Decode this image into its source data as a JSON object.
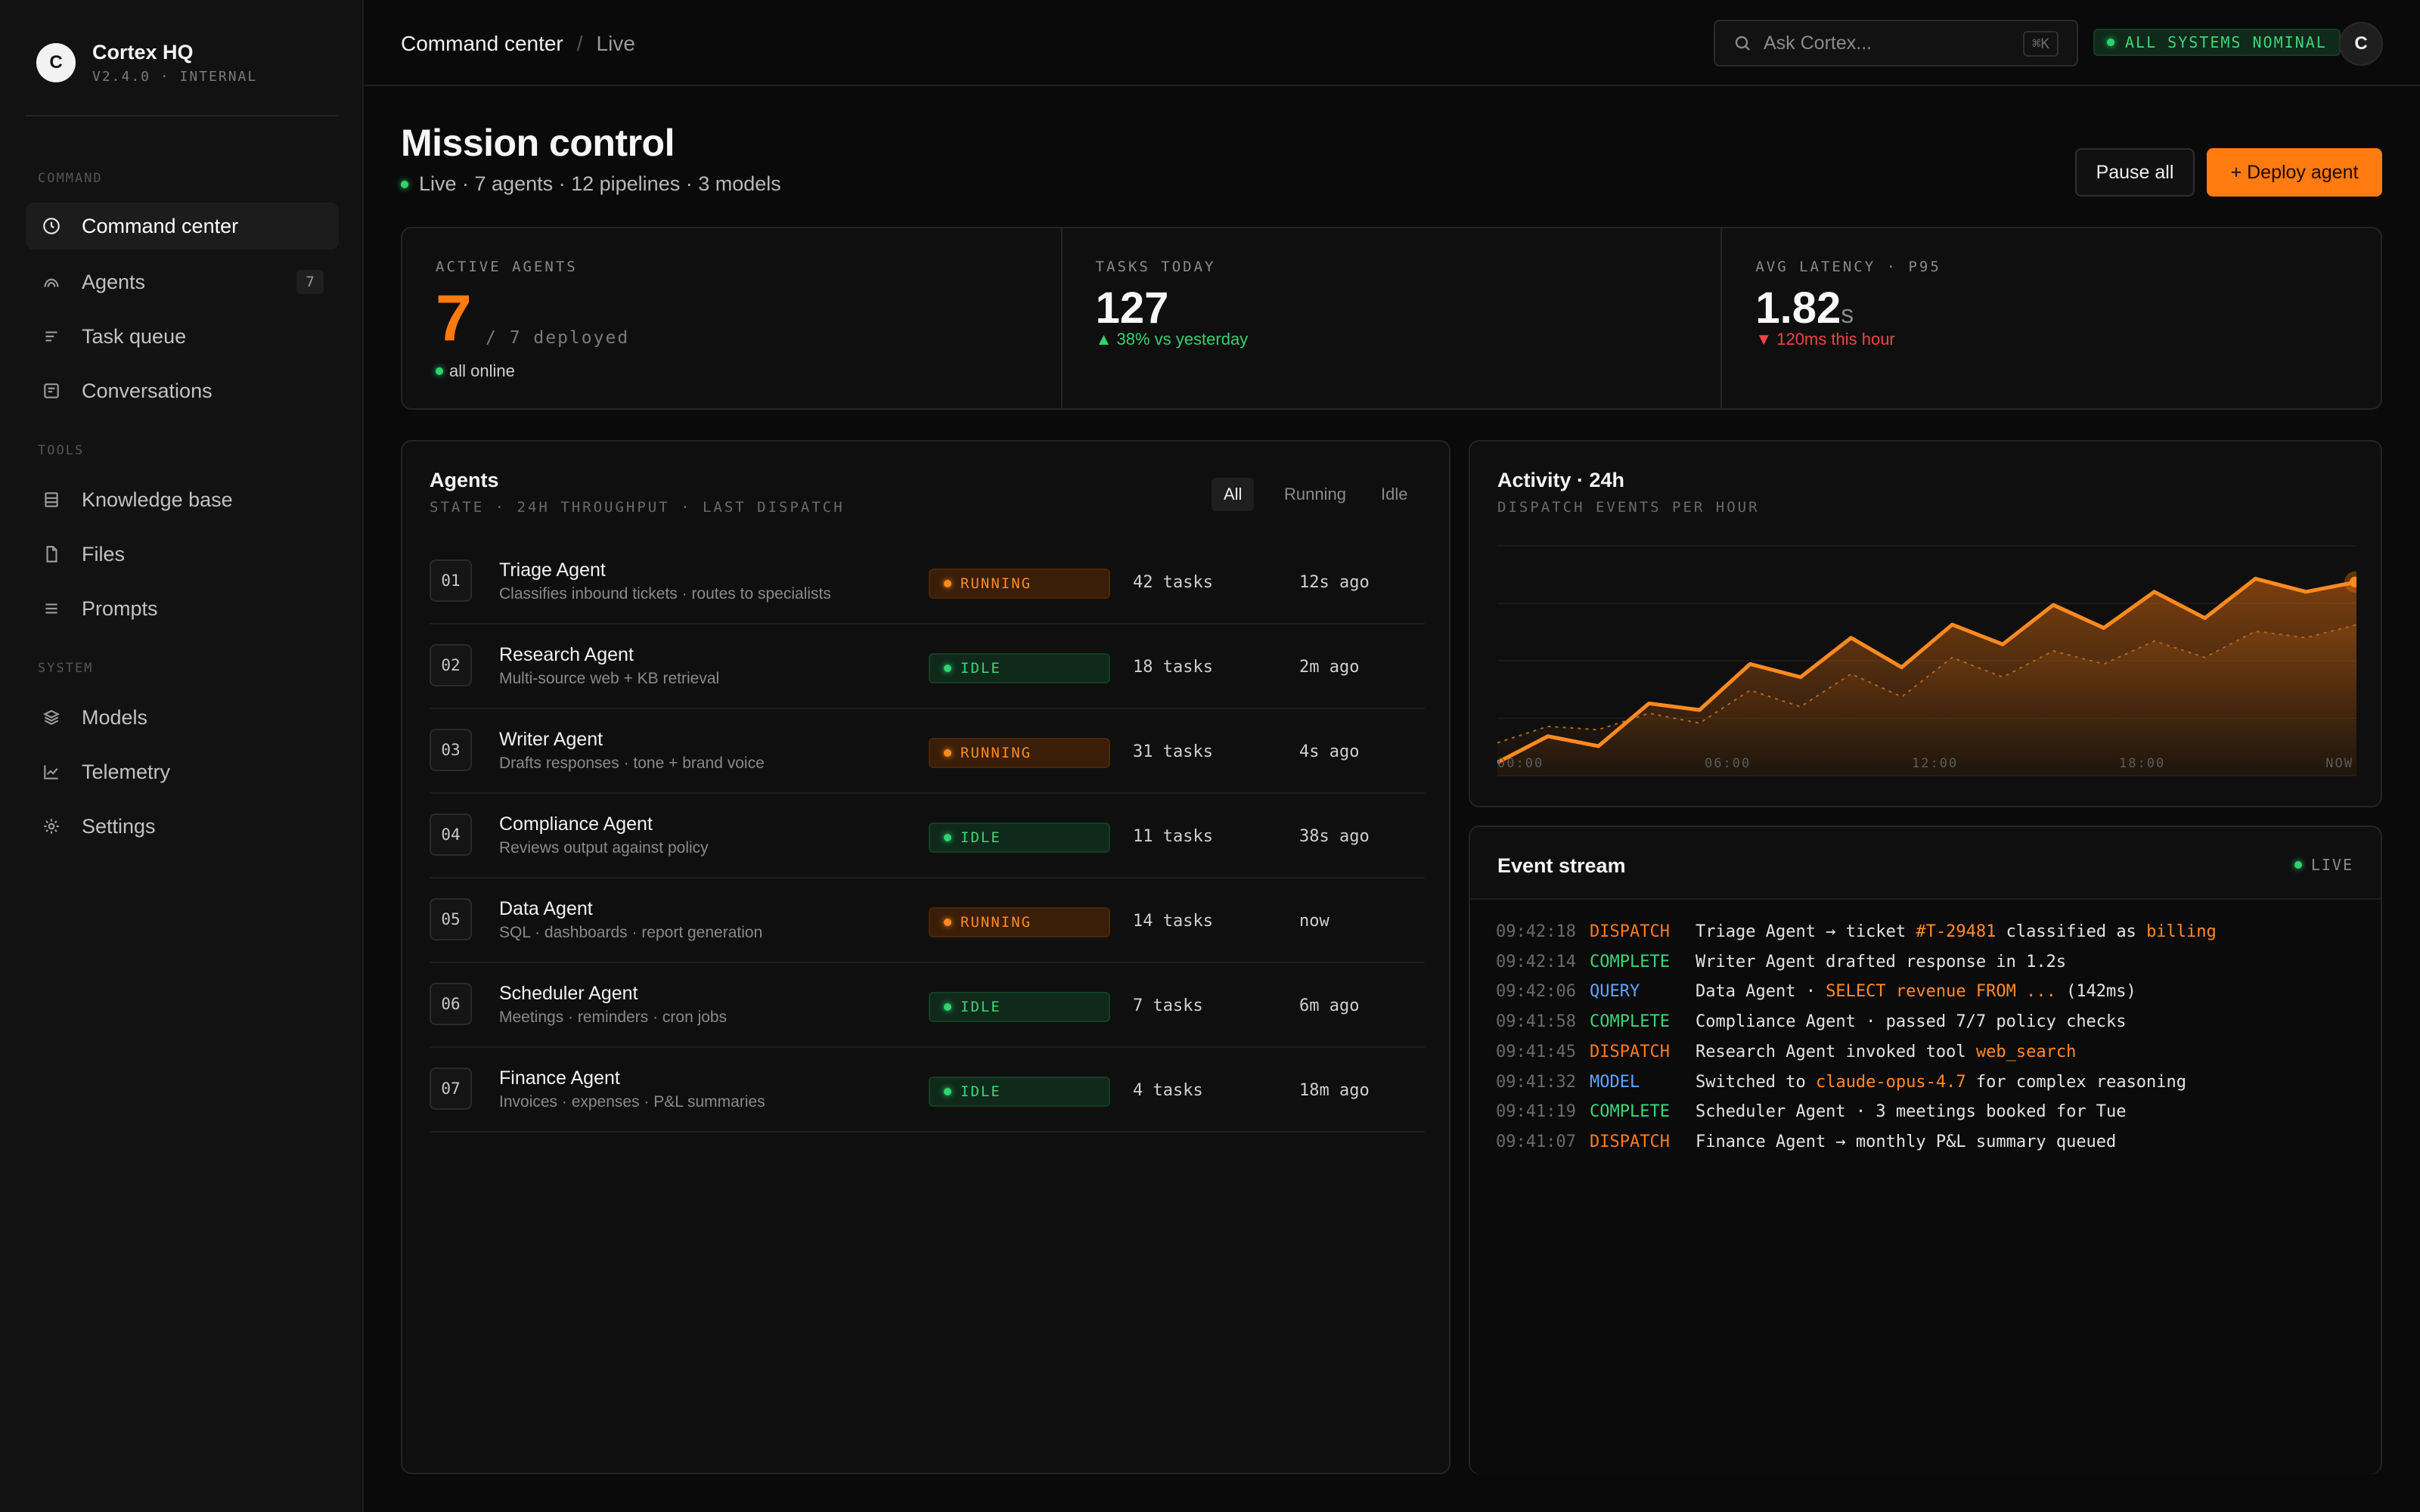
{
  "brand": {
    "logo_letter": "C",
    "name": "Cortex HQ",
    "version": "V2.4.0 · INTERNAL"
  },
  "sidebar": {
    "sections": [
      {
        "label": "COMMAND",
        "items": [
          {
            "label": "Command center",
            "icon": "clock-icon",
            "active": true
          },
          {
            "label": "Agents",
            "icon": "agents-icon",
            "count": "7"
          },
          {
            "label": "Task queue",
            "icon": "list-icon"
          },
          {
            "label": "Conversations",
            "icon": "conversation-icon"
          }
        ]
      },
      {
        "label": "TOOLS",
        "items": [
          {
            "label": "Knowledge base",
            "icon": "database-icon"
          },
          {
            "label": "Files",
            "icon": "file-icon"
          },
          {
            "label": "Prompts",
            "icon": "menu-icon"
          }
        ]
      },
      {
        "label": "SYSTEM",
        "items": [
          {
            "label": "Models",
            "icon": "layers-icon"
          },
          {
            "label": "Telemetry",
            "icon": "chart-icon"
          },
          {
            "label": "Settings",
            "icon": "gear-icon"
          }
        ]
      }
    ]
  },
  "topbar": {
    "breadcrumb": {
      "main": "Command center",
      "separator": "/",
      "sub": "Live"
    },
    "search": {
      "placeholder": "Ask Cortex...",
      "shortcut": "⌘K"
    },
    "status": "ALL SYSTEMS NOMINAL",
    "user_initial": "C"
  },
  "page": {
    "title": "Mission control",
    "subtitle": "Live · 7 agents · 12 pipelines · 3 models",
    "pause_label": "Pause all",
    "deploy_label": "+ Deploy agent"
  },
  "stats": {
    "active_agents": {
      "label": "ACTIVE AGENTS",
      "value": "7",
      "deployed": "/ 7 deployed",
      "note": "all online"
    },
    "tasks_today": {
      "label": "TASKS TODAY",
      "value": "127",
      "delta": "▲ 38% vs yesterday"
    },
    "latency": {
      "label": "AVG LATENCY · P95",
      "value": "1.82",
      "unit": "s",
      "delta": "▼ 120ms this hour"
    }
  },
  "agents_panel": {
    "title": "Agents",
    "subtitle": "STATE · 24H THROUGHPUT · LAST DISPATCH",
    "filters": [
      "All",
      "Running",
      "Idle"
    ],
    "active_filter": "All",
    "rows": [
      {
        "num": "01",
        "name": "Triage Agent",
        "desc": "Classifies inbound tickets · routes to specialists",
        "state": "RUNNING",
        "tasks": "42 tasks",
        "last": "12s ago"
      },
      {
        "num": "02",
        "name": "Research Agent",
        "desc": "Multi-source web + KB retrieval",
        "state": "IDLE",
        "tasks": "18 tasks",
        "last": "2m ago"
      },
      {
        "num": "03",
        "name": "Writer Agent",
        "desc": "Drafts responses · tone + brand voice",
        "state": "RUNNING",
        "tasks": "31 tasks",
        "last": "4s ago"
      },
      {
        "num": "04",
        "name": "Compliance Agent",
        "desc": "Reviews output against policy",
        "state": "IDLE",
        "tasks": "11 tasks",
        "last": "38s ago"
      },
      {
        "num": "05",
        "name": "Data Agent",
        "desc": "SQL · dashboards · report generation",
        "state": "RUNNING",
        "tasks": "14 tasks",
        "last": "now"
      },
      {
        "num": "06",
        "name": "Scheduler Agent",
        "desc": "Meetings · reminders · cron jobs",
        "state": "IDLE",
        "tasks": "7 tasks",
        "last": "6m ago"
      },
      {
        "num": "07",
        "name": "Finance Agent",
        "desc": "Invoices · expenses · P&L summaries",
        "state": "IDLE",
        "tasks": "4 tasks",
        "last": "18m ago"
      }
    ]
  },
  "activity_panel": {
    "title": "Activity · 24h",
    "subtitle": "DISPATCH EVENTS PER HOUR"
  },
  "chart_data": {
    "type": "area",
    "title": "Activity · 24h",
    "categories": [
      "00:00",
      "06:00",
      "12:00",
      "18:00",
      "NOW"
    ],
    "x": [
      0,
      1,
      2,
      3,
      4,
      5,
      6,
      7,
      8,
      9,
      10,
      11,
      12,
      13,
      14,
      15,
      16,
      17
    ],
    "series": [
      {
        "values": [
          4,
          12,
          9,
          22,
          20,
          34,
          30,
          42,
          33,
          46,
          40,
          52,
          45,
          56,
          48,
          60,
          56,
          59
        ],
        "color": "#ff8a1f"
      },
      {
        "values": [
          10,
          15,
          14,
          19,
          16,
          26,
          21,
          31,
          24,
          36,
          30,
          38,
          34,
          41,
          36,
          44,
          42,
          46
        ],
        "color": "#b0641c"
      }
    ],
    "ylim": [
      0,
      70
    ],
    "grid": true
  },
  "events_panel": {
    "title": "Event stream",
    "live_label": "LIVE",
    "events": [
      {
        "time": "09:42:18",
        "type": "DISPATCH",
        "kind": "dispatch",
        "parts": [
          [
            "Triage Agent → ticket ",
            false
          ],
          [
            "#T-29481",
            true
          ],
          [
            " classified as ",
            false
          ],
          [
            "billing",
            true
          ]
        ]
      },
      {
        "time": "09:42:14",
        "type": "COMPLETE",
        "kind": "complete",
        "parts": [
          [
            "Writer Agent drafted response in 1.2s",
            false
          ]
        ]
      },
      {
        "time": "09:42:06",
        "type": "QUERY",
        "kind": "query",
        "parts": [
          [
            "Data Agent · ",
            false
          ],
          [
            "SELECT revenue FROM ...",
            true
          ],
          [
            " (142ms)",
            false
          ]
        ]
      },
      {
        "time": "09:41:58",
        "type": "COMPLETE",
        "kind": "complete",
        "parts": [
          [
            "Compliance Agent · passed 7/7 policy checks",
            false
          ]
        ]
      },
      {
        "time": "09:41:45",
        "type": "DISPATCH",
        "kind": "dispatch",
        "parts": [
          [
            "Research Agent invoked tool ",
            false
          ],
          [
            "web_search",
            true
          ]
        ]
      },
      {
        "time": "09:41:32",
        "type": "MODEL",
        "kind": "model",
        "parts": [
          [
            "Switched to ",
            false
          ],
          [
            "claude-opus-4.7",
            true
          ],
          [
            " for complex reasoning",
            false
          ]
        ]
      },
      {
        "time": "09:41:19",
        "type": "COMPLETE",
        "kind": "complete",
        "parts": [
          [
            "Scheduler Agent · 3 meetings booked for Tue",
            false
          ]
        ]
      },
      {
        "time": "09:41:07",
        "type": "DISPATCH",
        "kind": "dispatch",
        "parts": [
          [
            "Finance Agent → monthly P&L summary queued",
            false
          ]
        ]
      }
    ]
  }
}
